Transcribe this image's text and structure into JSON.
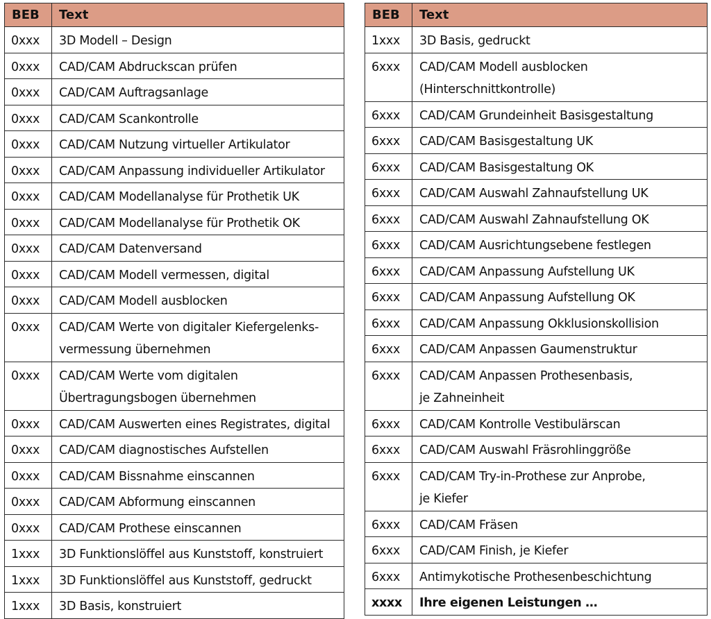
{
  "header": {
    "beb": "BEB",
    "text": "Text"
  },
  "left_rows": [
    {
      "beb": "0xxx",
      "lines": [
        "3D Modell – Design"
      ]
    },
    {
      "beb": "0xxx",
      "lines": [
        "CAD/CAM Abdruckscan prüfen"
      ]
    },
    {
      "beb": "0xxx",
      "lines": [
        "CAD/CAM Auftragsanlage"
      ]
    },
    {
      "beb": "0xxx",
      "lines": [
        "CAD/CAM Scankontrolle"
      ]
    },
    {
      "beb": "0xxx",
      "lines": [
        "CAD/CAM Nutzung virtueller Artikulator"
      ]
    },
    {
      "beb": "0xxx",
      "lines": [
        "CAD/CAM Anpassung individueller Artikulator"
      ]
    },
    {
      "beb": "0xxx",
      "lines": [
        "CAD/CAM Modellanalyse für Prothetik UK"
      ]
    },
    {
      "beb": "0xxx",
      "lines": [
        "CAD/CAM Modellanalyse für Prothetik OK"
      ]
    },
    {
      "beb": "0xxx",
      "lines": [
        "CAD/CAM Datenversand"
      ]
    },
    {
      "beb": "0xxx",
      "lines": [
        "CAD/CAM Modell vermessen, digital"
      ]
    },
    {
      "beb": "0xxx",
      "lines": [
        "CAD/CAM Modell ausblocken"
      ]
    },
    {
      "beb": "0xxx",
      "lines": [
        "CAD/CAM Werte von digitaler Kiefergelenks-",
        "vermessung übernehmen"
      ]
    },
    {
      "beb": "0xxx",
      "lines": [
        "CAD/CAM Werte vom digitalen",
        "Übertragungsbogen übernehmen"
      ]
    },
    {
      "beb": "0xxx",
      "lines": [
        "CAD/CAM Auswerten eines Registrates, digital"
      ]
    },
    {
      "beb": "0xxx",
      "lines": [
        "CAD/CAM diagnostisches Aufstellen"
      ]
    },
    {
      "beb": "0xxx",
      "lines": [
        "CAD/CAM Bissnahme einscannen"
      ]
    },
    {
      "beb": "0xxx",
      "lines": [
        "CAD/CAM Abformung einscannen"
      ]
    },
    {
      "beb": "0xxx",
      "lines": [
        "CAD/CAM Prothese einscannen"
      ]
    },
    {
      "beb": "1xxx",
      "lines": [
        "3D Funktionslöffel aus Kunststoff, konstruiert"
      ]
    },
    {
      "beb": "1xxx",
      "lines": [
        "3D Funktionslöffel aus Kunststoff, gedruckt"
      ]
    },
    {
      "beb": "1xxx",
      "lines": [
        "3D Basis, konstruiert"
      ]
    }
  ],
  "right_rows": [
    {
      "beb": "1xxx",
      "lines": [
        "3D Basis, gedruckt"
      ]
    },
    {
      "beb": "6xxx",
      "lines": [
        "CAD/CAM Modell ausblocken",
        "(Hinterschnittkontrolle)"
      ]
    },
    {
      "beb": "6xxx",
      "lines": [
        "CAD/CAM Grundeinheit Basisgestaltung"
      ]
    },
    {
      "beb": "6xxx",
      "lines": [
        "CAD/CAM Basisgestaltung UK"
      ]
    },
    {
      "beb": "6xxx",
      "lines": [
        "CAD/CAM Basisgestaltung OK"
      ]
    },
    {
      "beb": "6xxx",
      "lines": [
        "CAD/CAM Auswahl Zahnaufstellung UK"
      ]
    },
    {
      "beb": "6xxx",
      "lines": [
        "CAD/CAM Auswahl Zahnaufstellung OK"
      ]
    },
    {
      "beb": "6xxx",
      "lines": [
        "CAD/CAM Ausrichtungsebene festlegen"
      ]
    },
    {
      "beb": "6xxx",
      "lines": [
        "CAD/CAM Anpassung Aufstellung UK"
      ]
    },
    {
      "beb": "6xxx",
      "lines": [
        "CAD/CAM Anpassung Aufstellung OK"
      ]
    },
    {
      "beb": "6xxx",
      "lines": [
        "CAD/CAM Anpassung Okklusionskollision"
      ]
    },
    {
      "beb": "6xxx",
      "lines": [
        "CAD/CAM Anpassen Gaumenstruktur"
      ]
    },
    {
      "beb": "6xxx",
      "lines": [
        "CAD/CAM Anpassen Prothesenbasis,",
        "je Zahneinheit"
      ]
    },
    {
      "beb": "6xxx",
      "lines": [
        "CAD/CAM Kontrolle Vestibulärscan"
      ]
    },
    {
      "beb": "6xxx",
      "lines": [
        "CAD/CAM Auswahl Fräsrohlinggröße"
      ]
    },
    {
      "beb": "6xxx",
      "lines": [
        "CAD/CAM Try-in-Prothese zur Anprobe,",
        "je Kiefer"
      ]
    },
    {
      "beb": "6xxx",
      "lines": [
        "CAD/CAM Fräsen"
      ]
    },
    {
      "beb": "6xxx",
      "lines": [
        "CAD/CAM Finish, je Kiefer"
      ]
    },
    {
      "beb": "6xxx",
      "lines": [
        "Antimykotische Prothesenbeschichtung"
      ]
    },
    {
      "beb": "xxxx",
      "lines": [
        "Ihre eigenen Leistungen …"
      ],
      "bold": true
    }
  ],
  "colors": {
    "header_bg": "#dc9c86",
    "border": "#2a2a2a",
    "text": "#111111"
  }
}
